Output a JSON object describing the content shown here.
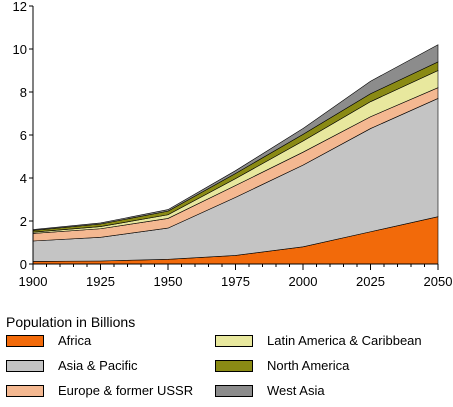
{
  "chart_data": {
    "type": "area",
    "stacked": true,
    "title": "",
    "xlabel": "",
    "ylabel": "",
    "legend_title": "Population in Billions",
    "legend_position": "bottom",
    "x": [
      1900,
      1925,
      1950,
      1975,
      2000,
      2025,
      2050
    ],
    "xlim": [
      1900,
      2050
    ],
    "ylim": [
      0,
      12
    ],
    "xticks": [
      1900,
      1925,
      1950,
      1975,
      2000,
      2025,
      2050
    ],
    "yticks": [
      0,
      2,
      4,
      6,
      8,
      10,
      12
    ],
    "grid": false,
    "series": [
      {
        "name": "Africa",
        "color": "#f26a0a",
        "values": [
          0.12,
          0.14,
          0.22,
          0.4,
          0.8,
          1.5,
          2.2
        ]
      },
      {
        "name": "Asia & Pacific",
        "color": "#c4c4c4",
        "values": [
          0.95,
          1.1,
          1.45,
          2.7,
          3.8,
          4.8,
          5.5
        ]
      },
      {
        "name": "Europe & former USSR",
        "color": "#f4b891",
        "values": [
          0.35,
          0.4,
          0.45,
          0.55,
          0.6,
          0.55,
          0.5
        ]
      },
      {
        "name": "Latin America & Caribbean",
        "color": "#e8e89e",
        "values": [
          0.06,
          0.1,
          0.17,
          0.32,
          0.52,
          0.7,
          0.8
        ]
      },
      {
        "name": "North America",
        "color": "#8a8a14",
        "values": [
          0.08,
          0.12,
          0.17,
          0.24,
          0.31,
          0.37,
          0.4
        ]
      },
      {
        "name": "West Asia",
        "color": "#8c8c8c",
        "values": [
          0.04,
          0.05,
          0.07,
          0.13,
          0.27,
          0.58,
          0.8
        ]
      }
    ]
  }
}
